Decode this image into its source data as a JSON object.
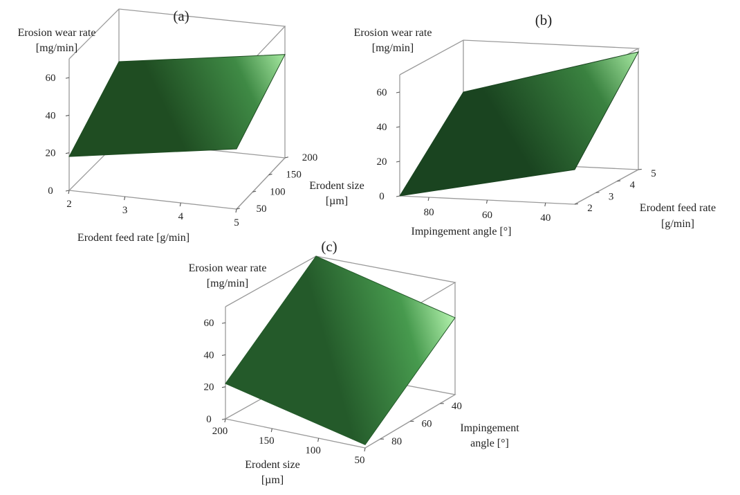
{
  "chart_data": [
    {
      "type": "surface",
      "panel_label": "(a)",
      "zlabel": [
        "Erosion wear rate",
        "[mg/min]"
      ],
      "xlabel": [
        "Erodent feed rate [g/min]"
      ],
      "ylabel": [
        "Erodent size",
        "[µm]"
      ],
      "z_ticks": [
        "0",
        "20",
        "40",
        "60"
      ],
      "x_ticks": [
        "2",
        "3",
        "4",
        "5"
      ],
      "y_ticks": [
        "50",
        "100",
        "150",
        "200"
      ],
      "x_range": [
        2,
        5
      ],
      "y_range": [
        50,
        200
      ],
      "z_range": [
        0,
        70
      ],
      "corners": [
        {
          "x": 2,
          "y": 50,
          "z": 18
        },
        {
          "x": 5,
          "y": 50,
          "z": 32
        },
        {
          "x": 5,
          "y": 200,
          "z": 55
        },
        {
          "x": 2,
          "y": 200,
          "z": 42
        }
      ],
      "colors": {
        "dark": "#1f4d22",
        "mid": "#3f8a45",
        "light": "#a5e8a0"
      }
    },
    {
      "type": "surface",
      "panel_label": "(b)",
      "zlabel": [
        "Erosion wear rate",
        "[mg/min]"
      ],
      "xlabel": [
        "Impingement angle [°]"
      ],
      "ylabel": [
        "Erodent feed rate",
        "[g/min]"
      ],
      "z_ticks": [
        "0",
        "20",
        "40",
        "60"
      ],
      "x_ticks": [
        "80",
        "60",
        "40"
      ],
      "y_ticks": [
        "2",
        "3",
        "4",
        "5"
      ],
      "x_range": [
        90,
        30
      ],
      "y_range": [
        2,
        5
      ],
      "z_range": [
        0,
        70
      ],
      "corners": [
        {
          "x": 90,
          "y": 2,
          "z": 0
        },
        {
          "x": 30,
          "y": 2,
          "z": 20
        },
        {
          "x": 30,
          "y": 5,
          "z": 68
        },
        {
          "x": 90,
          "y": 5,
          "z": 40
        }
      ],
      "colors": {
        "dark": "#1a4420",
        "mid": "#3a8240",
        "light": "#a7e9a2"
      }
    },
    {
      "type": "surface",
      "panel_label": "(c)",
      "zlabel": [
        "Erosion wear rate",
        "[mg/min]"
      ],
      "xlabel": [
        "Erodent size",
        "[µm]"
      ],
      "ylabel": [
        "Impingement",
        "angle [°]"
      ],
      "z_ticks": [
        "0",
        "20",
        "40",
        "60"
      ],
      "x_ticks": [
        "200",
        "150",
        "100",
        "50"
      ],
      "y_ticks": [
        "40",
        "60",
        "80"
      ],
      "x_range": [
        200,
        50
      ],
      "y_range": [
        90,
        30
      ],
      "z_range": [
        0,
        70
      ],
      "corners": [
        {
          "x": 200,
          "y": 90,
          "z": 22
        },
        {
          "x": 50,
          "y": 90,
          "z": 2
        },
        {
          "x": 50,
          "y": 30,
          "z": 48
        },
        {
          "x": 200,
          "y": 30,
          "z": 70
        }
      ],
      "colors": {
        "dark": "#245a2a",
        "mid": "#479a4e",
        "light": "#b3f2ad"
      }
    }
  ]
}
